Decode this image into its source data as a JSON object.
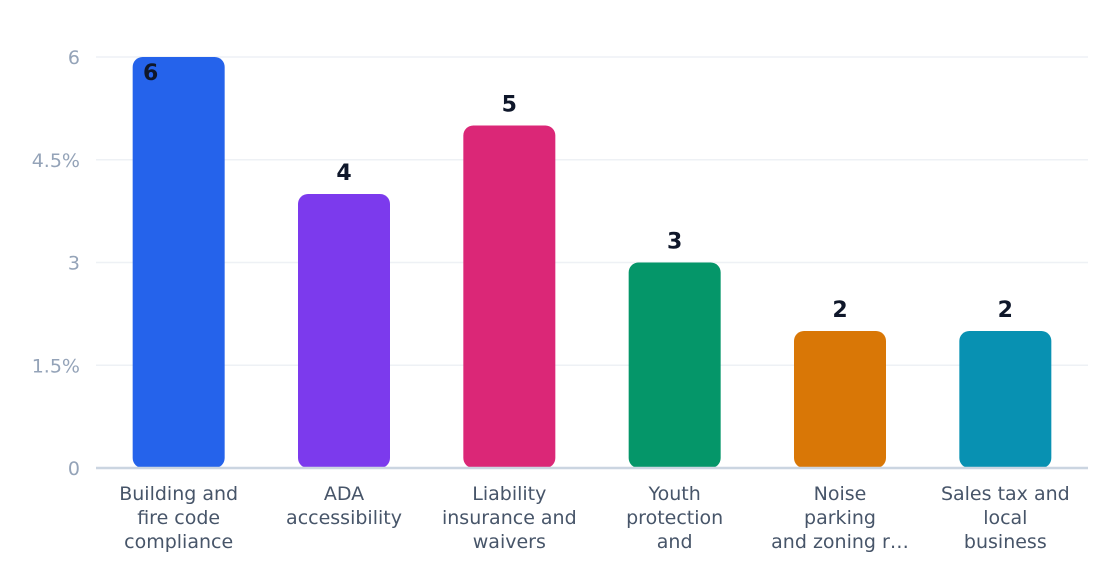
{
  "chart_data": {
    "type": "bar",
    "title": "",
    "xlabel": "",
    "ylabel": "",
    "ylim": [
      0,
      6
    ],
    "yticks": [
      {
        "value": 0,
        "label": "0"
      },
      {
        "value": 1.5,
        "label": "1.5%"
      },
      {
        "value": 3,
        "label": "3"
      },
      {
        "value": 4.5,
        "label": "4.5%"
      },
      {
        "value": 6,
        "label": "6"
      }
    ],
    "grid": true,
    "legend": "none",
    "categories": [
      [
        "Building and",
        "fire code",
        "compliance"
      ],
      [
        "ADA",
        "accessibility"
      ],
      [
        "Liability",
        "insurance and",
        "waivers"
      ],
      [
        "Youth",
        "protection",
        "and"
      ],
      [
        "Noise",
        "parking",
        "and zoning r…"
      ],
      [
        "Sales tax and",
        "local",
        "business"
      ]
    ],
    "values": [
      6,
      4,
      5,
      3,
      2,
      2
    ],
    "data_labels": [
      "6",
      "4",
      "5",
      "3",
      "2",
      "2"
    ],
    "colors": [
      "#2563eb",
      "#7c3aed",
      "#db2777",
      "#059669",
      "#d97706",
      "#0891b2"
    ]
  }
}
